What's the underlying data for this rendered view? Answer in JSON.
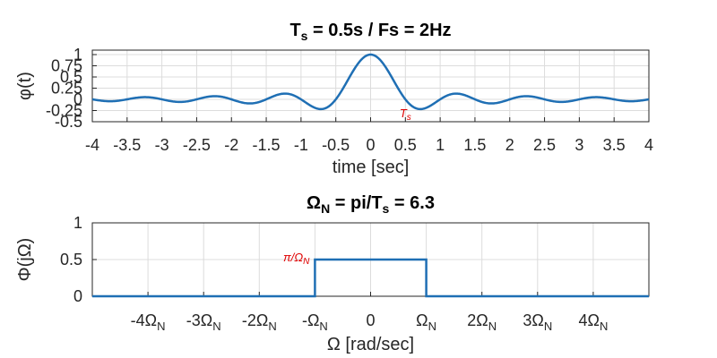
{
  "colors": {
    "line": "#1f6fb4",
    "annotation": "#e00000",
    "grid": "#dcdcdc",
    "axis": "#262626"
  },
  "chart_data": [
    {
      "type": "line",
      "title": {
        "main": "T",
        "sub": "s",
        "rest": " = 0.5s / Fs = 2Hz"
      },
      "xlabel": "time [sec]",
      "ylabel": "φ(t)",
      "xlim": [
        -4,
        4
      ],
      "ylim": [
        -0.5,
        1.1
      ],
      "grid": true,
      "xticks": [
        -4,
        -3.5,
        -3,
        -2.5,
        -2,
        -1.5,
        -1,
        -0.5,
        0,
        0.5,
        1,
        1.5,
        2,
        2.5,
        3,
        3.5,
        4
      ],
      "xtick_labels": [
        "-4",
        "-3.5",
        "-3",
        "-2.5",
        "-2",
        "-1.5",
        "-1",
        "-0.5",
        "0",
        "0.5",
        "1",
        "1.5",
        "2",
        "2.5",
        "3",
        "3.5",
        "4"
      ],
      "yticks": [
        -0.5,
        -0.25,
        0,
        0.25,
        0.5,
        0.75,
        1
      ],
      "ytick_labels": [
        "-0.5",
        "-0.25",
        "0",
        "0.25",
        "0.5",
        "0.75",
        "1"
      ],
      "series": [
        {
          "function": "sinc",
          "Ts": 0.5,
          "x_range": [
            -4,
            4
          ]
        }
      ],
      "annotations": [
        {
          "text": "T",
          "sub": "s",
          "x": 0.5,
          "y": -0.28
        }
      ]
    },
    {
      "type": "line",
      "title": {
        "main": "Ω",
        "sub": "N",
        "rest": " = pi/T",
        "sub2": "s",
        "rest2": " = 6.3"
      },
      "xlabel": "Ω [rad/sec]",
      "ylabel": "Φ(jΩ)",
      "xlim": [
        -5,
        5
      ],
      "ylim": [
        0,
        1
      ],
      "grid": true,
      "xticks": [
        -4,
        -3,
        -2,
        -1,
        0,
        1,
        2,
        3,
        4
      ],
      "xtick_labels": [
        {
          "main": "-4Ω",
          "sub": "N"
        },
        {
          "main": "-3Ω",
          "sub": "N"
        },
        {
          "main": "-2Ω",
          "sub": "N"
        },
        {
          "main": "-Ω",
          "sub": "N"
        },
        {
          "main": "0",
          "sub": ""
        },
        {
          "main": "Ω",
          "sub": "N"
        },
        {
          "main": "2Ω",
          "sub": "N"
        },
        {
          "main": "3Ω",
          "sub": "N"
        },
        {
          "main": "4Ω",
          "sub": "N"
        }
      ],
      "yticks": [
        0,
        0.5,
        1
      ],
      "ytick_labels": [
        "0",
        "0.5",
        "1"
      ],
      "series": [
        {
          "x": [
            -5,
            -1,
            -1,
            1,
            1,
            5
          ],
          "y": [
            0,
            0,
            0.5,
            0.5,
            0,
            0
          ]
        }
      ],
      "annotations": [
        {
          "text": "π/Ω",
          "sub": "N",
          "x": -1,
          "y": 0.5
        }
      ]
    }
  ]
}
